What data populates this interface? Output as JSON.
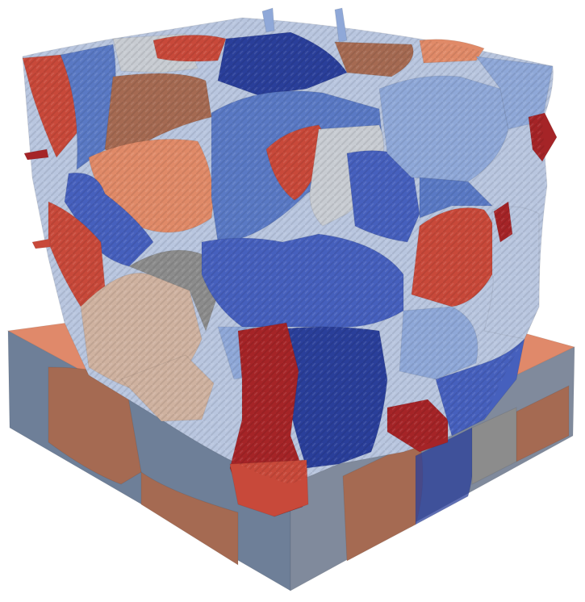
{
  "scene": {
    "colors": {
      "background": "#ffffff",
      "slab_top": "#e0896a",
      "slab_left": "#6e7f98",
      "slab_right": "#808a9c",
      "grain_red": "#c8493a",
      "grain_dark_red": "#a52427",
      "grain_salmon": "#e08a68",
      "grain_brown": "#a56a52",
      "grain_tan": "#cfb2a0",
      "grain_gray": "#8c8c8c",
      "grain_light_gray": "#c8ccd2",
      "grain_dark_blue": "#2a3f9a",
      "grain_blue": "#4660bd",
      "grain_mid_blue": "#5a79c4",
      "grain_light_blue": "#8fa8d8",
      "grain_pale_blue": "#b9c6df"
    }
  }
}
